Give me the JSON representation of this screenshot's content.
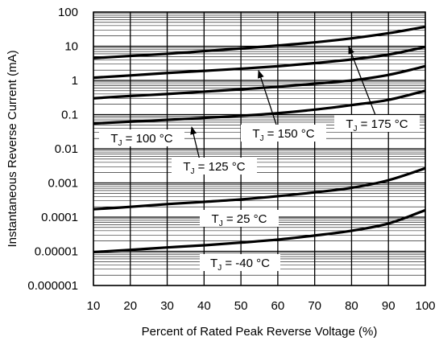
{
  "chart_data": {
    "type": "line",
    "title": "",
    "xlabel": "Percent of Rated Peak Reverse Voltage (%)",
    "ylabel": "Instantaneous Reverse Current (mA)",
    "x_scale": "linear",
    "y_scale": "log",
    "xlim": [
      10,
      100
    ],
    "ylim": [
      1e-06,
      100
    ],
    "grid": true,
    "x_ticks": [
      "10",
      "20",
      "30",
      "40",
      "50",
      "60",
      "70",
      "80",
      "90",
      "100"
    ],
    "y_ticks": [
      "0.000001",
      "0.00001",
      "0.0001",
      "0.001",
      "0.01",
      "0.1",
      "1",
      "10",
      "100"
    ],
    "series": [
      {
        "name": "TJ = 175 °C",
        "x": [
          10,
          20,
          30,
          40,
          50,
          60,
          70,
          80,
          90,
          100
        ],
        "y": [
          4.5,
          5.2,
          6.0,
          7.2,
          8.6,
          10.5,
          13,
          17,
          24,
          37
        ]
      },
      {
        "name": "TJ = 150 °C",
        "x": [
          10,
          20,
          30,
          40,
          50,
          60,
          70,
          80,
          90,
          100
        ],
        "y": [
          1.2,
          1.4,
          1.65,
          1.9,
          2.2,
          2.6,
          3.2,
          4.1,
          5.7,
          9.5
        ]
      },
      {
        "name": "TJ = 125 °C",
        "x": [
          10,
          20,
          30,
          40,
          50,
          60,
          70,
          80,
          90,
          100
        ],
        "y": [
          0.3,
          0.35,
          0.4,
          0.47,
          0.55,
          0.65,
          0.8,
          1.0,
          1.45,
          2.6
        ]
      },
      {
        "name": "TJ = 100 °C",
        "x": [
          10,
          20,
          30,
          40,
          50,
          60,
          70,
          80,
          90,
          100
        ],
        "y": [
          0.055,
          0.062,
          0.07,
          0.08,
          0.092,
          0.11,
          0.14,
          0.19,
          0.27,
          0.5
        ]
      },
      {
        "name": "TJ = 25 °C",
        "x": [
          10,
          20,
          30,
          40,
          50,
          60,
          70,
          80,
          90,
          100
        ],
        "y": [
          0.00017,
          0.0002,
          0.00024,
          0.00028,
          0.00033,
          0.00041,
          0.00053,
          0.00072,
          0.0012,
          0.0027
        ]
      },
      {
        "name": "TJ = -40 °C",
        "x": [
          10,
          20,
          30,
          40,
          50,
          60,
          70,
          80,
          90,
          100
        ],
        "y": [
          9.5e-06,
          1.1e-05,
          1.3e-05,
          1.5e-05,
          1.8e-05,
          2.2e-05,
          2.9e-05,
          4e-05,
          6.5e-05,
          0.00016
        ]
      }
    ],
    "labels": [
      {
        "series": "TJ = 100 °C",
        "pre": "T",
        "sub": "J",
        "post": " = 100 °C"
      },
      {
        "series": "TJ = 125 °C",
        "pre": "T",
        "sub": "J",
        "post": " = 125 °C"
      },
      {
        "series": "TJ = 150 °C",
        "pre": "T",
        "sub": "J",
        "post": " = 150 °C"
      },
      {
        "series": "TJ = 175 °C",
        "pre": "T",
        "sub": "J",
        "post": " = 175 °C"
      },
      {
        "series": "TJ = 25 °C",
        "pre": "T",
        "sub": "J",
        "post": " = 25 °C"
      },
      {
        "series": "TJ = -40 °C",
        "pre": "T",
        "sub": "J",
        "post": " = -40 °C"
      }
    ]
  }
}
